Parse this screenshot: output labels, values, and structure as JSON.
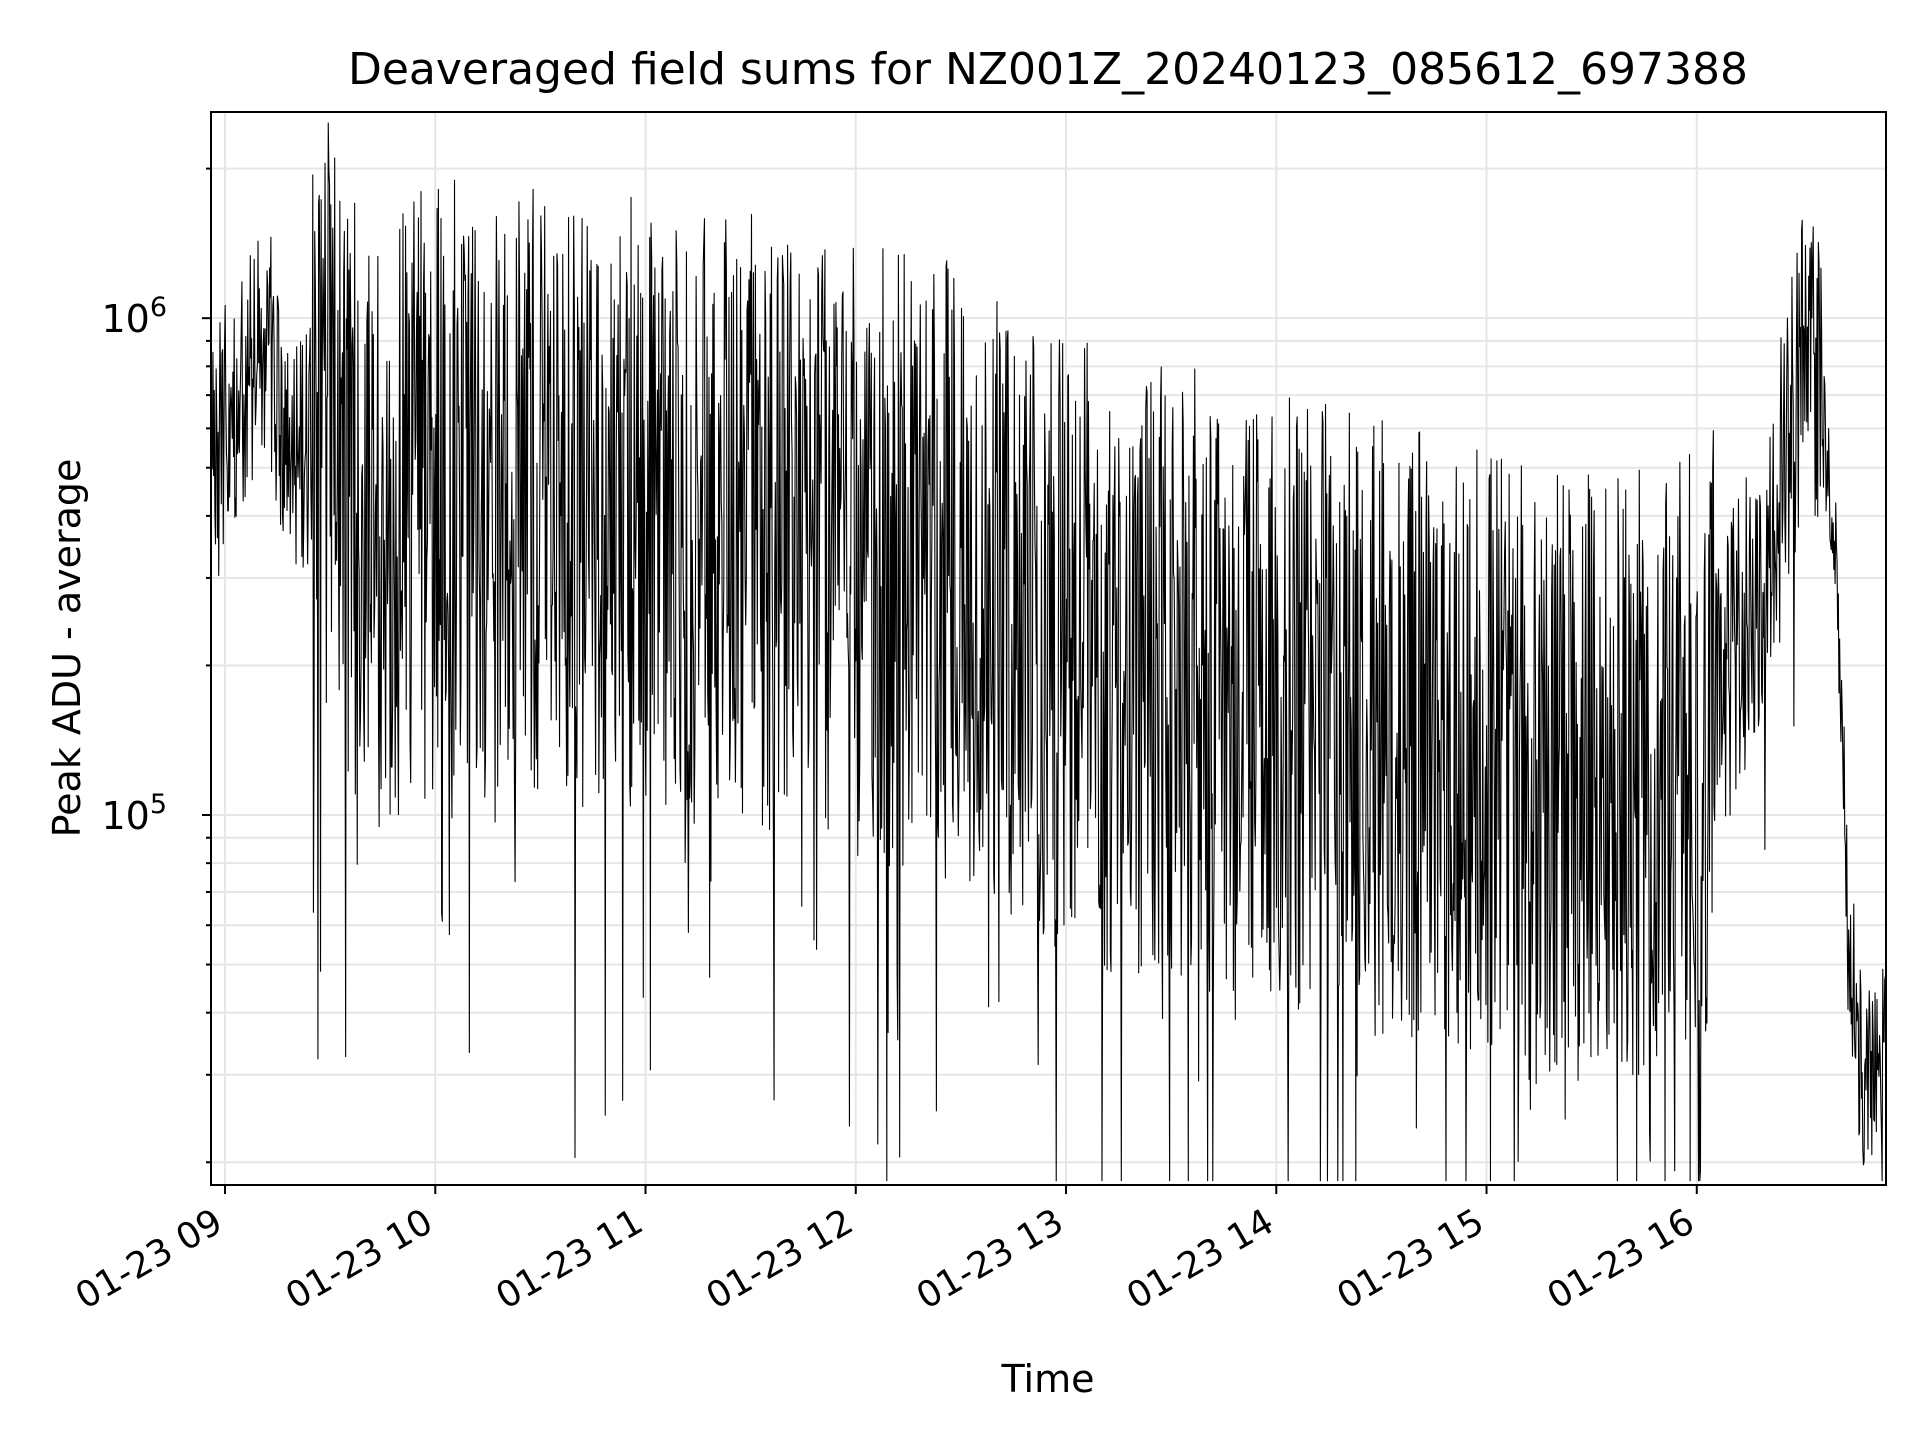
{
  "chart_data": {
    "type": "line",
    "title": "Deaveraged field sums for NZ001Z_20240123_085612_697388",
    "xlabel": "Time",
    "ylabel": "Peak ADU - average",
    "yscale": "log",
    "xlim": [
      "2024-01-23 08:56",
      "2024-01-23 16:54"
    ],
    "ylim": [
      18000,
      2600000
    ],
    "x_tick_labels": [
      "01-23 09",
      "01-23 10",
      "01-23 11",
      "01-23 12",
      "01-23 13",
      "01-23 14",
      "01-23 15",
      "01-23 16"
    ],
    "y_tick_labels": [
      {
        "base": "10",
        "exp": "5",
        "value": 100000
      },
      {
        "base": "10",
        "exp": "6",
        "value": 1000000
      }
    ],
    "grid": true,
    "line_color": "#000000",
    "series": [
      {
        "points": [
          [
            "2024-01-23 08:56",
            540000
          ],
          [
            "2024-01-23 09:05",
            700000
          ],
          [
            "2024-01-23 09:12",
            950000
          ],
          [
            "2024-01-23 09:18",
            480000
          ],
          [
            "2024-01-23 09:24",
            560000
          ],
          [
            "2024-01-23 09:30",
            620000
          ],
          [
            "2024-01-23 09:40",
            380000
          ],
          [
            "2024-01-23 09:50",
            420000
          ],
          [
            "2024-01-23 10:00",
            470000
          ],
          [
            "2024-01-23 10:15",
            450000
          ],
          [
            "2024-01-23 10:30",
            430000
          ],
          [
            "2024-01-23 10:45",
            410000
          ],
          [
            "2024-01-23 11:00",
            440000
          ],
          [
            "2024-01-23 11:15",
            400000
          ],
          [
            "2024-01-23 11:30",
            390000
          ],
          [
            "2024-01-23 11:45",
            360000
          ],
          [
            "2024-01-23 12:00",
            340000
          ],
          [
            "2024-01-23 12:15",
            320000
          ],
          [
            "2024-01-23 12:30",
            310000
          ],
          [
            "2024-01-23 12:45",
            250000
          ],
          [
            "2024-01-23 13:00",
            220000
          ],
          [
            "2024-01-23 13:15",
            200000
          ],
          [
            "2024-01-23 13:30",
            190000
          ],
          [
            "2024-01-23 13:45",
            185000
          ],
          [
            "2024-01-23 14:00",
            180000
          ],
          [
            "2024-01-23 14:15",
            160000
          ],
          [
            "2024-01-23 14:30",
            150000
          ],
          [
            "2024-01-23 14:45",
            140000
          ],
          [
            "2024-01-23 15:00",
            130000
          ],
          [
            "2024-01-23 15:15",
            120000
          ],
          [
            "2024-01-23 15:30",
            115000
          ],
          [
            "2024-01-23 15:45",
            120000
          ],
          [
            "2024-01-23 16:00",
            130000
          ],
          [
            "2024-01-23 16:10",
            200000
          ],
          [
            "2024-01-23 16:20",
            300000
          ],
          [
            "2024-01-23 16:30",
            800000
          ],
          [
            "2024-01-23 16:35",
            750000
          ],
          [
            "2024-01-23 16:40",
            300000
          ],
          [
            "2024-01-23 16:43",
            60000
          ],
          [
            "2024-01-23 16:48",
            30000
          ],
          [
            "2024-01-23 16:54",
            33000
          ]
        ]
      }
    ]
  }
}
